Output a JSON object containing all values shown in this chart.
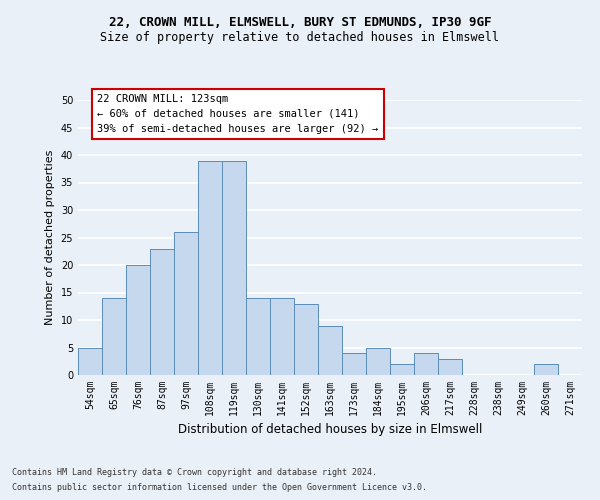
{
  "title_line1": "22, CROWN MILL, ELMSWELL, BURY ST EDMUNDS, IP30 9GF",
  "title_line2": "Size of property relative to detached houses in Elmswell",
  "xlabel": "Distribution of detached houses by size in Elmswell",
  "ylabel": "Number of detached properties",
  "footer_line1": "Contains HM Land Registry data © Crown copyright and database right 2024.",
  "footer_line2": "Contains public sector information licensed under the Open Government Licence v3.0.",
  "categories": [
    "54sqm",
    "65sqm",
    "76sqm",
    "87sqm",
    "97sqm",
    "108sqm",
    "119sqm",
    "130sqm",
    "141sqm",
    "152sqm",
    "163sqm",
    "173sqm",
    "184sqm",
    "195sqm",
    "206sqm",
    "217sqm",
    "228sqm",
    "238sqm",
    "249sqm",
    "260sqm",
    "271sqm"
  ],
  "values": [
    5,
    14,
    20,
    23,
    26,
    39,
    39,
    14,
    14,
    13,
    9,
    4,
    5,
    2,
    4,
    3,
    0,
    0,
    0,
    2,
    0
  ],
  "bar_color": "#c5d8ed",
  "bar_edge_color": "#5b8db8",
  "annotation_text": "22 CROWN MILL: 123sqm\n← 60% of detached houses are smaller (141)\n39% of semi-detached houses are larger (92) →",
  "annotation_box_color": "#ffffff",
  "annotation_box_edge_color": "#cc0000",
  "ylim": [
    0,
    50
  ],
  "yticks": [
    0,
    5,
    10,
    15,
    20,
    25,
    30,
    35,
    40,
    45,
    50
  ],
  "bg_color": "#eaf0f8",
  "plot_bg_color": "#eaf0f8",
  "grid_color": "#ffffff",
  "title_fontsize": 9,
  "subtitle_fontsize": 8.5,
  "axis_label_fontsize": 8,
  "tick_fontsize": 7,
  "annotation_fontsize": 7.5,
  "footer_fontsize": 6
}
